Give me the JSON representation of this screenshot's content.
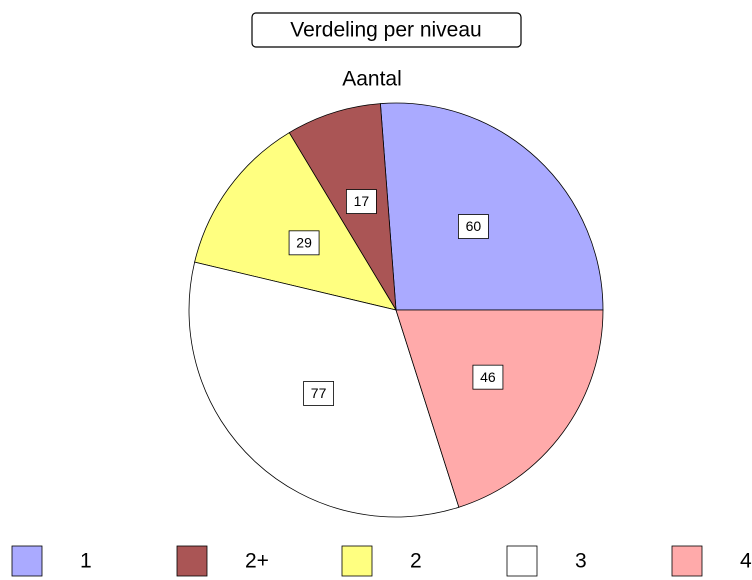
{
  "chart_data": {
    "type": "pie",
    "title": "Verdeling per niveau",
    "subtitle": "Aantal",
    "categories": [
      "1",
      "2+",
      "2",
      "3",
      "4"
    ],
    "values": [
      60,
      17,
      29,
      77,
      46
    ],
    "colors": [
      "#aaaaff",
      "#aa5555",
      "#ffff80",
      "#ffffff",
      "#ffaaaa"
    ],
    "legend": "bottom"
  }
}
